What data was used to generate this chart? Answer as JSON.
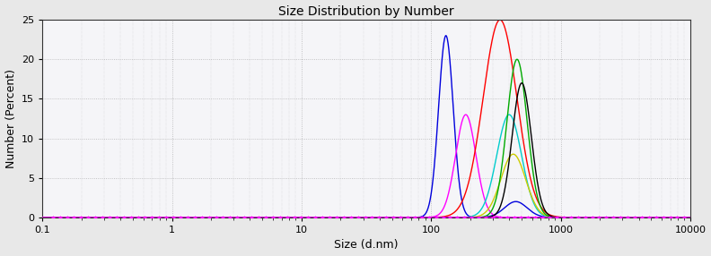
{
  "title": "Size Distribution by Number",
  "xlabel": "Size (d.nm)",
  "ylabel": "Number (Percent)",
  "xlim": [
    0.1,
    10000
  ],
  "ylim": [
    0,
    25
  ],
  "yticks": [
    0,
    5,
    10,
    15,
    20,
    25
  ],
  "background_color": "#e8e8e8",
  "plot_bg_color": "#f5f5f8",
  "curves": [
    {
      "color": "#0000dd",
      "peaks": [
        {
          "peak": 130,
          "sigma": 0.13,
          "amplitude": 23
        },
        {
          "peak": 450,
          "sigma": 0.2,
          "amplitude": 2.0
        }
      ]
    },
    {
      "color": "#ff00ff",
      "peaks": [
        {
          "peak": 185,
          "sigma": 0.18,
          "amplitude": 13
        }
      ]
    },
    {
      "color": "#ff0000",
      "peaks": [
        {
          "peak": 340,
          "sigma": 0.3,
          "amplitude": 25
        }
      ]
    },
    {
      "color": "#00cccc",
      "peaks": [
        {
          "peak": 400,
          "sigma": 0.22,
          "amplitude": 13
        }
      ]
    },
    {
      "color": "#cccc00",
      "peaks": [
        {
          "peak": 430,
          "sigma": 0.22,
          "amplitude": 8
        }
      ]
    },
    {
      "color": "#00aa00",
      "peaks": [
        {
          "peak": 460,
          "sigma": 0.18,
          "amplitude": 20
        }
      ]
    },
    {
      "color": "#000000",
      "peaks": [
        {
          "peak": 500,
          "sigma": 0.17,
          "amplitude": 17
        }
      ]
    }
  ],
  "baseline_color": "#ff00ff",
  "baseline_marker_color": "#ff00ff",
  "grid_color": "#999999",
  "title_fontsize": 10,
  "label_fontsize": 9,
  "tick_fontsize": 8
}
